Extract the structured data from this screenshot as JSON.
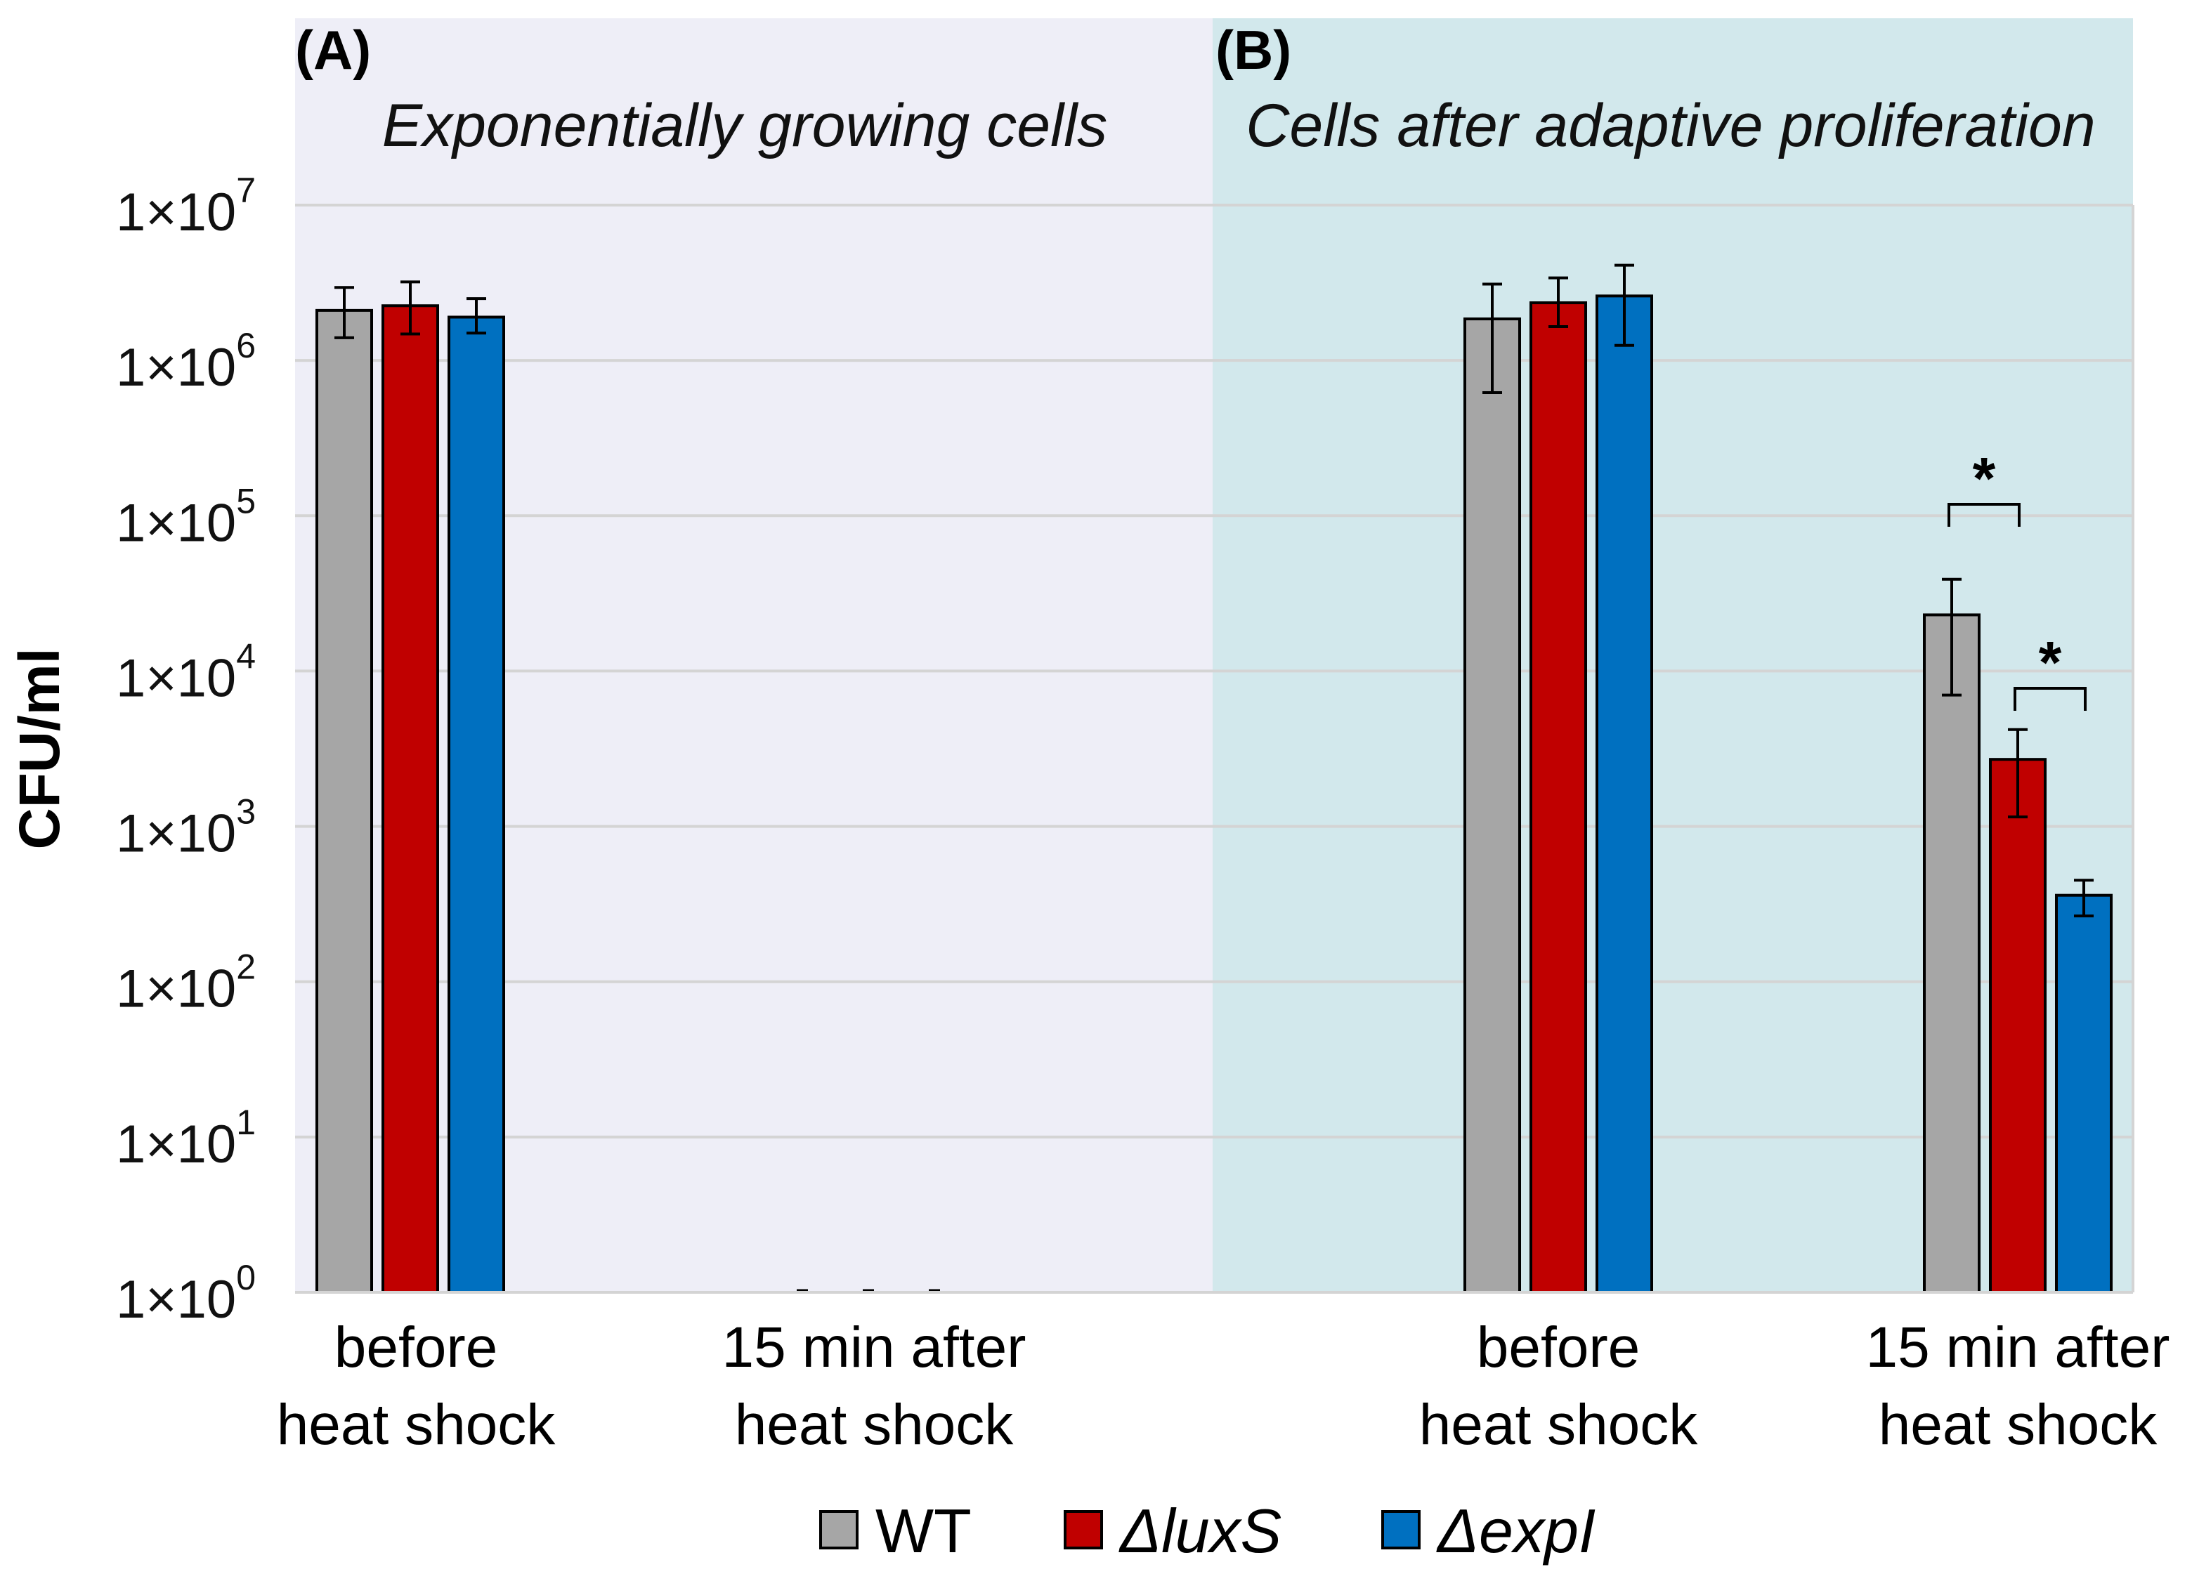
{
  "chart_data": {
    "type": "bar",
    "yscale": "log",
    "ylabel": "CFU/ml",
    "ylim": [
      1,
      10000000
    ],
    "y_ticks": [
      {
        "base": "1×10",
        "exp": "0"
      },
      {
        "base": "1×10",
        "exp": "1"
      },
      {
        "base": "1×10",
        "exp": "2"
      },
      {
        "base": "1×10",
        "exp": "3"
      },
      {
        "base": "1×10",
        "exp": "4"
      },
      {
        "base": "1×10",
        "exp": "5"
      },
      {
        "base": "1×10",
        "exp": "6"
      },
      {
        "base": "1×10",
        "exp": "7"
      }
    ],
    "grid": true,
    "legend_position": "bottom",
    "panels": [
      {
        "label": "(A)",
        "title": "Exponentially growing cells",
        "background": "#eeeef7",
        "categories": [
          {
            "line1": "before",
            "line2": "heat shock"
          },
          {
            "line1": "15 min after",
            "line2": "heat shock"
          }
        ]
      },
      {
        "label": "(B)",
        "title": "Cells after adaptive proliferation",
        "background": "#d2e8ec",
        "categories": [
          {
            "line1": "before",
            "line2": "heat shock"
          },
          {
            "line1": "15 min after",
            "line2": "heat shock"
          }
        ]
      }
    ],
    "series": [
      {
        "name": "WT",
        "color": "#a6a6a6",
        "values": [
          2100000,
          0,
          1850000,
          23000
        ],
        "err_low": [
          1400000,
          0,
          620000,
          7000
        ],
        "err_high": [
          2950000,
          0,
          3100000,
          39000
        ]
      },
      {
        "name": "ΔluxS",
        "color": "#c00000",
        "values": [
          2250000,
          0,
          2350000,
          2700
        ],
        "err_low": [
          1480000,
          0,
          1650000,
          1150
        ],
        "err_high": [
          3200000,
          0,
          3400000,
          4200
        ]
      },
      {
        "name": "ΔexpI",
        "color": "#0070c0",
        "values": [
          1900000,
          0,
          2600000,
          360
        ],
        "err_low": [
          1500000,
          0,
          1250000,
          265
        ],
        "err_high": [
          2500000,
          0,
          4100000,
          450
        ]
      }
    ],
    "annotations": [
      {
        "text": "*",
        "panel": 1,
        "group": 1,
        "from_series": 0,
        "to_series": 1
      },
      {
        "text": "*",
        "panel": 1,
        "group": 1,
        "from_series": 1,
        "to_series": 2
      }
    ],
    "legend_entries": [
      {
        "prefix": "",
        "italic": "",
        "normal": "WT"
      },
      {
        "prefix": "Δ",
        "italic": "luxS",
        "normal": ""
      },
      {
        "prefix": "Δ",
        "italic": "expI",
        "normal": ""
      }
    ]
  }
}
